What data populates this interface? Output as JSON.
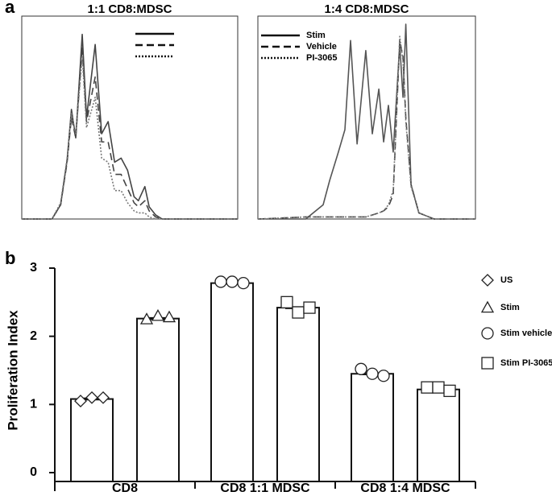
{
  "chart_data": [
    {
      "type": "line",
      "panel_label": "a",
      "title": "1:1 CD8:MDSC",
      "x": [
        0,
        14,
        18,
        21,
        23,
        25,
        28,
        30,
        34,
        37,
        40,
        43,
        46,
        49,
        52,
        54,
        57,
        59,
        62,
        65,
        70,
        100
      ],
      "series": [
        {
          "color": "#444444",
          "dash": "solid",
          "values": [
            0,
            0,
            7,
            29,
            54,
            40,
            91,
            50,
            86,
            42,
            48,
            28,
            30,
            24,
            11,
            9,
            16,
            6,
            2,
            0,
            0,
            0
          ]
        },
        {
          "color": "#444444",
          "dash": "dashed",
          "values": [
            0,
            0,
            7,
            28,
            50,
            40,
            85,
            48,
            70,
            38,
            38,
            22,
            22,
            15,
            8,
            6,
            9,
            4,
            1,
            0,
            0,
            0
          ]
        },
        {
          "color": "#777777",
          "dash": "dotted",
          "values": [
            0,
            0,
            8,
            30,
            52,
            42,
            80,
            45,
            60,
            30,
            28,
            14,
            14,
            8,
            4,
            3,
            3,
            1,
            0,
            0,
            0,
            0
          ]
        }
      ]
    },
    {
      "type": "line",
      "title": "1:4 CD8:MDSC",
      "legend": "upper left",
      "x": [
        0,
        22,
        30,
        33,
        37,
        40,
        42.6,
        45.6,
        49.6,
        52.6,
        55.6,
        57.8,
        60,
        62.2,
        65.2,
        66.7,
        68,
        70.4,
        74,
        81,
        100
      ],
      "series": [
        {
          "name": "Stim",
          "color": "#555555",
          "dash": "solid",
          "values": [
            0,
            0,
            7,
            19,
            33,
            44,
            88,
            37,
            83,
            42,
            64,
            38,
            56,
            33,
            86,
            60,
            96,
            17,
            3,
            0,
            0
          ]
        },
        {
          "name": "Vehicle",
          "color": "#444444",
          "dash": "dashed",
          "values": [
            0,
            1,
            1,
            1,
            1,
            1,
            1,
            1,
            1,
            2,
            3,
            4,
            6,
            12,
            88,
            80,
            50,
            17,
            3,
            0,
            0
          ]
        },
        {
          "name": "PI-3065",
          "color": "#777777",
          "dash": "dotted",
          "values": [
            0,
            1,
            1,
            1,
            1,
            1,
            1,
            1,
            1,
            2,
            3,
            4,
            7,
            14,
            90,
            78,
            48,
            16,
            3,
            0,
            0
          ]
        }
      ]
    },
    {
      "type": "bar",
      "panel_label": "b",
      "ylabel": "Proliferation Index",
      "categories": [
        "CD8",
        "CD8 1:1 MDSC",
        "CD8 1:4 MDSC"
      ],
      "ylim": [
        0,
        3
      ],
      "yticks": [
        0,
        1,
        2,
        3
      ],
      "legend": "right",
      "series": [
        {
          "name": "US",
          "marker": "diamond",
          "values": [
            1.08,
            null,
            null
          ],
          "points": [
            [
              1.05,
              1.1,
              1.1
            ],
            null,
            null
          ]
        },
        {
          "name": "Stim",
          "marker": "triangle",
          "values": [
            2.26,
            null,
            null
          ],
          "points": [
            [
              2.25,
              2.3,
              2.28
            ],
            null,
            null
          ]
        },
        {
          "name": "Stim vehicle",
          "marker": "circle",
          "values": [
            null,
            2.78,
            1.45
          ],
          "points": [
            null,
            [
              2.8,
              2.8,
              2.78
            ],
            [
              1.52,
              1.45,
              1.42
            ]
          ]
        },
        {
          "name": "Stim PI-3065",
          "marker": "square",
          "values": [
            null,
            2.42,
            1.22
          ],
          "points": [
            null,
            [
              2.5,
              2.35,
              2.42
            ],
            [
              1.25,
              1.25,
              1.2
            ]
          ]
        }
      ]
    }
  ]
}
